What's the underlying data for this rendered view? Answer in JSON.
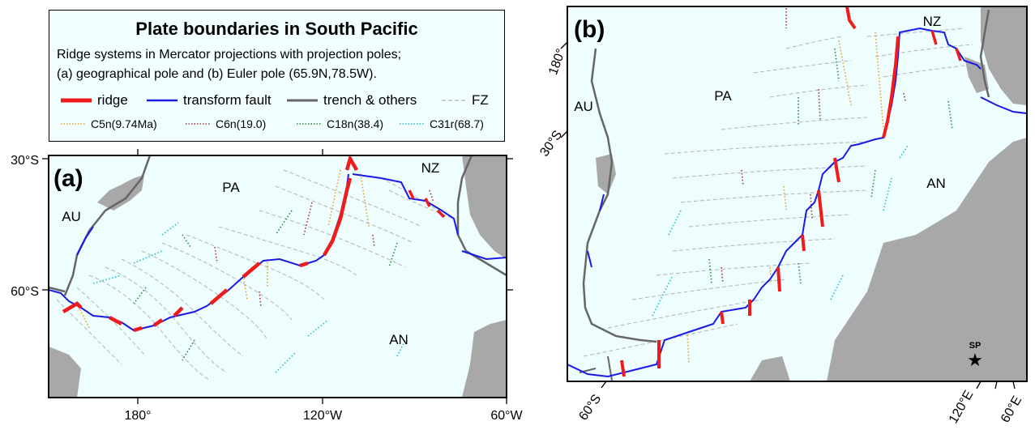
{
  "legend": {
    "title": "Plate boundaries in South Pacific",
    "subtitle_line1": "Ridge systems in Mercator projections with projection poles;",
    "subtitle_line2": "(a) geographical pole and (b) Euler pole (65.9N,78.5W).",
    "items": [
      {
        "label": "ridge",
        "color": "#ee1c1c",
        "style": "thick-solid"
      },
      {
        "label": "transform fault",
        "color": "#1a1ae6",
        "style": "solid"
      },
      {
        "label": "trench & others",
        "color": "#666666",
        "style": "solid"
      },
      {
        "label": "FZ",
        "color": "#b0b0b0",
        "style": "dashed"
      }
    ],
    "anomalies": [
      {
        "label": "C5n(9.74Ma)",
        "color": "#e8a020"
      },
      {
        "label": "C6n(19.0)",
        "color": "#a03040"
      },
      {
        "label": "C18n(38.4)",
        "color": "#2a8a3a"
      },
      {
        "label": "C31r(68.7)",
        "color": "#20c0c8"
      }
    ]
  },
  "panel_a": {
    "label": "(a)",
    "lat_labels": [
      "30°S",
      "60°S"
    ],
    "lon_labels": [
      "180°",
      "120°W",
      "60°W"
    ],
    "plates": [
      "AU",
      "PA",
      "NZ",
      "AN"
    ]
  },
  "panel_b": {
    "label": "(b)",
    "tick_labels": [
      "180°",
      "30°S",
      "60°S",
      "120°E",
      "60°E"
    ],
    "plates": [
      "AU",
      "PA",
      "NZ",
      "AN"
    ],
    "pole_marker": "SP"
  },
  "colors": {
    "ocean": "#eefdfd",
    "land": "#a8a8a8",
    "ridge": "#ee1c1c",
    "transform": "#1a1ae6",
    "trench": "#666666"
  }
}
